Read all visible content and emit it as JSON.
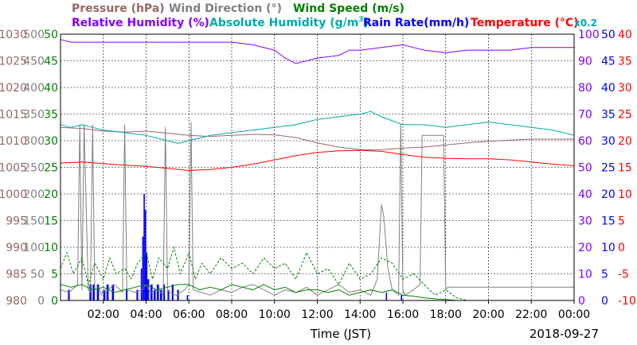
{
  "chart_data": {
    "type": "line",
    "legend_row1": [
      {
        "name": "Pressure (hPa)",
        "color": "#996666"
      },
      {
        "name": "Wind Direction (°)",
        "color": "#808080"
      },
      {
        "name": "Wind Speed (m/s)",
        "color": "#008000"
      }
    ],
    "legend_row2": [
      {
        "name": "Relative Humidity (%)",
        "color": "#8000ff"
      },
      {
        "name": "Absolute Humidity (g/m",
        "sup": "3",
        "tail": ")",
        "color": "#00aaaa"
      },
      {
        "name": "Rain Rate(mm/h)",
        "color": "#0000ff"
      },
      {
        "name": "Temperature (°C)",
        "color": "#ff0000"
      }
    ],
    "factor_label": "x0.2",
    "xlabel": "Time (JST)",
    "date_label": "2018-09-27",
    "x_ticks": [
      "02:00",
      "04:00",
      "06:00",
      "08:00",
      "10:00",
      "12:00",
      "14:00",
      "16:00",
      "18:00",
      "20:00",
      "22:00",
      "00:00"
    ],
    "x_range_hours": [
      0,
      24
    ],
    "axes": {
      "pressure": {
        "color": "#996666",
        "ticks": [
          "980",
          "985",
          "990",
          "995",
          "1000",
          "1005",
          "1010",
          "1015",
          "1020",
          "1025",
          "1030"
        ],
        "ylim": [
          980,
          1030
        ]
      },
      "wind_direction": {
        "color": "#808080",
        "ticks": [
          "0",
          "50",
          "100",
          "150",
          "200",
          "250",
          "300",
          "350",
          "400",
          "450",
          "500"
        ],
        "ylim": [
          0,
          500
        ]
      },
      "wind_speed": {
        "color": "#008000",
        "ticks": [
          "0",
          "5",
          "10",
          "15",
          "20",
          "25",
          "30",
          "35",
          "40",
          "45",
          "50"
        ],
        "ylim": [
          0,
          50
        ]
      },
      "humidity": {
        "color": "#8000ff",
        "ticks": [
          "0",
          "10",
          "20",
          "30",
          "40",
          "50",
          "60",
          "70",
          "80",
          "90",
          "100"
        ],
        "ylim": [
          0,
          100
        ]
      },
      "rain_rate": {
        "color": "#0000ff",
        "ticks": [
          "0",
          "5",
          "10",
          "15",
          "20",
          "25",
          "30",
          "35",
          "40",
          "45",
          "50"
        ],
        "ylim": [
          0,
          50
        ]
      },
      "temperature": {
        "color": "#ff0000",
        "ticks": [
          "-10",
          "-5",
          "0",
          "5",
          "10",
          "15",
          "20",
          "25",
          "30",
          "35",
          "40"
        ],
        "ylim": [
          -10,
          40
        ]
      }
    },
    "series": [
      {
        "name": "Relative Humidity (%)",
        "axis": "humidity",
        "color": "#8000ff",
        "x": [
          0,
          0.5,
          1,
          2,
          3,
          4,
          5,
          6,
          7,
          8,
          9,
          10,
          10.5,
          11,
          11.5,
          12,
          13,
          13.5,
          14,
          15,
          16,
          16.5,
          17,
          18,
          19,
          20,
          21,
          22,
          23,
          24
        ],
        "y": [
          98,
          97,
          97,
          97,
          97,
          97,
          97,
          97,
          97,
          97,
          96,
          94,
          91,
          89,
          90,
          91,
          92,
          94,
          94,
          95,
          96,
          95,
          94,
          93,
          94,
          94,
          94,
          95,
          95,
          95
        ]
      },
      {
        "name": "Absolute Humidity (g/m3) x0.2",
        "axis": "humidity",
        "color": "#00aaaa",
        "x": [
          0,
          0.5,
          1,
          1.5,
          2,
          3,
          4,
          5,
          5.5,
          6,
          7,
          8,
          9,
          10,
          11,
          12,
          13,
          14,
          14.5,
          15,
          16,
          17,
          18,
          19,
          20,
          21,
          22,
          23,
          24
        ],
        "y": [
          66,
          65,
          66,
          65,
          64,
          63,
          62,
          60,
          59,
          60,
          62,
          63,
          64,
          65,
          66,
          68,
          69,
          70,
          71,
          69,
          66,
          66,
          65,
          66,
          67,
          66,
          65,
          64,
          62
        ]
      },
      {
        "name": "Pressure (hPa)",
        "axis": "pressure",
        "color": "#996666",
        "x": [
          0,
          1,
          2,
          3,
          4,
          5,
          6,
          7,
          8,
          9,
          10,
          11,
          12,
          13,
          14,
          15,
          16,
          17,
          18,
          19,
          20,
          21,
          22,
          23,
          24
        ],
        "y": [
          1012.5,
          1012.3,
          1011.8,
          1011.6,
          1011.8,
          1011.4,
          1011.0,
          1010.8,
          1011.0,
          1011.2,
          1011.1,
          1010.6,
          1009.6,
          1008.8,
          1008.3,
          1008.3,
          1008.6,
          1008.8,
          1009.2,
          1009.6,
          1009.9,
          1010.1,
          1010.3,
          1010.3,
          1010.3
        ]
      },
      {
        "name": "Temperature (°C)",
        "axis": "temperature",
        "color": "#ff0000",
        "x": [
          0,
          1,
          2,
          3,
          4,
          5,
          6,
          7,
          8,
          9,
          10,
          11,
          12,
          13,
          14,
          15,
          16,
          17,
          18,
          19,
          20,
          21,
          22,
          23,
          24
        ],
        "y": [
          15.8,
          16.0,
          15.7,
          15.4,
          15.2,
          14.8,
          14.4,
          14.6,
          15.0,
          15.6,
          16.4,
          17.2,
          17.8,
          18.1,
          18.2,
          18.0,
          17.4,
          16.9,
          16.7,
          16.6,
          16.6,
          16.4,
          16.0,
          15.6,
          15.3
        ]
      },
      {
        "name": "Wind Direction (°)",
        "axis": "wind_direction",
        "color": "#808080",
        "x": [
          0,
          0.4,
          0.8,
          0.9,
          1.0,
          1.1,
          1.3,
          1.4,
          1.5,
          1.6,
          1.8,
          1.9,
          2.0,
          2.1,
          2.5,
          2.8,
          2.9,
          3.0,
          3.1,
          3.5,
          3.8,
          4.0,
          4.2,
          4.6,
          4.8,
          4.9,
          5.0,
          5.1,
          5.4,
          5.8,
          6.0,
          6.1,
          6.2,
          6.6,
          7.0,
          7.5,
          8.0,
          8.5,
          9.0,
          9.5,
          10.0,
          10.5,
          11.0,
          11.5,
          12.0,
          12.5,
          13.0,
          13.5,
          14.0,
          14.5,
          14.8,
          15.0,
          15.1,
          15.3,
          15.5,
          15.8,
          15.9,
          16.0,
          16.1,
          16.5,
          16.8,
          16.9,
          17.0,
          17.2,
          17.6,
          17.9,
          18.0,
          18.1,
          19.0,
          20.0,
          22.0,
          24.0
        ],
        "y": [
          20,
          15,
          30,
          330,
          20,
          330,
          20,
          15,
          330,
          20,
          25,
          10,
          20,
          15,
          30,
          20,
          15,
          330,
          20,
          15,
          20,
          30,
          15,
          20,
          10,
          325,
          20,
          15,
          10,
          20,
          30,
          335,
          20,
          15,
          10,
          20,
          15,
          25,
          30,
          20,
          10,
          20,
          15,
          25,
          10,
          20,
          30,
          15,
          20,
          10,
          40,
          180,
          160,
          60,
          20,
          10,
          330,
          20,
          10,
          20,
          30,
          310,
          310,
          310,
          310,
          310,
          20,
          25,
          25,
          25,
          25,
          25
        ]
      },
      {
        "name": "Wind Speed (m/s) dashed",
        "axis": "wind_speed",
        "color": "#008000",
        "dashed": true,
        "x": [
          0,
          0.3,
          0.6,
          1.0,
          1.3,
          1.6,
          2.0,
          2.3,
          2.6,
          3.0,
          3.3,
          3.6,
          4.0,
          4.3,
          4.6,
          5.0,
          5.3,
          5.6,
          6.0,
          6.3,
          6.6,
          7.0,
          7.5,
          8.0,
          8.5,
          9.0,
          9.5,
          10.0,
          10.5,
          11.0,
          11.5,
          12.0,
          12.5,
          13.0,
          13.5,
          14.0,
          14.5,
          15.0,
          15.5,
          16.0,
          16.5,
          17.0,
          17.5,
          18.0,
          18.5,
          19.0,
          20.0,
          22.0,
          24.0
        ],
        "y": [
          6,
          9,
          5,
          8,
          3,
          7,
          4,
          8,
          5,
          6,
          4,
          7,
          9,
          4,
          8,
          6,
          10,
          5,
          9,
          4,
          7,
          5,
          8,
          6,
          7,
          5,
          8,
          6,
          7,
          4,
          9,
          5,
          6,
          3,
          7,
          4,
          5,
          8,
          7,
          4,
          5,
          3,
          1,
          2,
          0.5,
          0,
          0,
          0,
          0
        ]
      },
      {
        "name": "Wind Speed (m/s)",
        "axis": "wind_speed",
        "color": "#008000",
        "x": [
          0,
          0.5,
          1,
          1.5,
          2,
          2.5,
          3,
          3.5,
          4,
          4.5,
          5,
          5.5,
          6,
          6.5,
          7,
          7.5,
          8,
          8.5,
          9,
          9.5,
          10,
          10.5,
          11,
          11.5,
          12,
          12.5,
          13,
          13.5,
          14,
          14.5,
          15,
          15.5,
          16,
          16.5,
          17,
          17.5,
          18,
          18.5,
          19,
          20,
          22,
          24
        ],
        "y": [
          3,
          2.5,
          3,
          2,
          2.5,
          1.5,
          2,
          2.5,
          3,
          2,
          2.5,
          3,
          3,
          2,
          2.5,
          2,
          3,
          2.5,
          2,
          3,
          2,
          2.5,
          1.5,
          2,
          2,
          1.5,
          2,
          1,
          1.5,
          2,
          1.5,
          2,
          1,
          0.8,
          0.5,
          0.3,
          0.2,
          0,
          0,
          0,
          0,
          0
        ]
      }
    ],
    "rain_rate": {
      "name": "Rain Rate(mm/h)",
      "axis": "rain_rate",
      "color": "#0000ff",
      "bars": [
        {
          "x": 0.35,
          "w": 0.08,
          "v": 2
        },
        {
          "x": 1.35,
          "w": 0.1,
          "v": 3
        },
        {
          "x": 1.5,
          "w": 0.1,
          "v": 3
        },
        {
          "x": 1.7,
          "w": 0.1,
          "v": 3
        },
        {
          "x": 2.0,
          "w": 0.1,
          "v": 2
        },
        {
          "x": 2.15,
          "w": 0.1,
          "v": 3
        },
        {
          "x": 2.4,
          "w": 0.1,
          "v": 3
        },
        {
          "x": 3.05,
          "w": 0.08,
          "v": 2
        },
        {
          "x": 3.55,
          "w": 0.08,
          "v": 2
        },
        {
          "x": 3.75,
          "w": 0.06,
          "v": 6
        },
        {
          "x": 3.82,
          "w": 0.06,
          "v": 12
        },
        {
          "x": 3.88,
          "w": 0.06,
          "v": 20
        },
        {
          "x": 3.94,
          "w": 0.06,
          "v": 17
        },
        {
          "x": 4.0,
          "w": 0.06,
          "v": 9
        },
        {
          "x": 4.06,
          "w": 0.08,
          "v": 4
        },
        {
          "x": 4.2,
          "w": 0.1,
          "v": 3
        },
        {
          "x": 4.35,
          "w": 0.1,
          "v": 2
        },
        {
          "x": 4.5,
          "w": 0.1,
          "v": 3
        },
        {
          "x": 4.65,
          "w": 0.1,
          "v": 2
        },
        {
          "x": 4.8,
          "w": 0.08,
          "v": 3
        },
        {
          "x": 5.0,
          "w": 0.08,
          "v": 2
        },
        {
          "x": 5.2,
          "w": 0.08,
          "v": 3
        },
        {
          "x": 5.45,
          "w": 0.08,
          "v": 2
        },
        {
          "x": 5.9,
          "w": 0.06,
          "v": 1
        },
        {
          "x": 15.2,
          "w": 0.06,
          "v": 1.5
        },
        {
          "x": 15.9,
          "w": 0.06,
          "v": 1
        }
      ]
    }
  }
}
